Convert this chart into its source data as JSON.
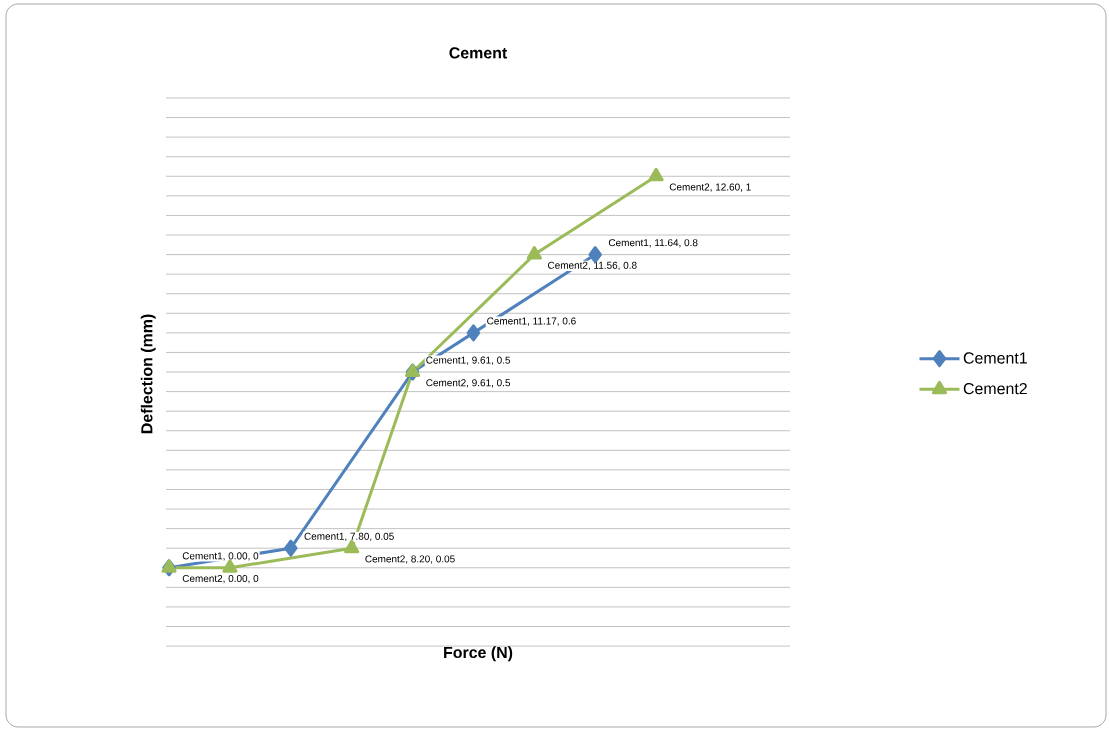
{
  "chart_data": {
    "type": "line",
    "title": "Cement",
    "xlabel": "Force (N)",
    "ylabel": "Deflection (mm)",
    "categories": [
      null,
      null,
      null,
      null,
      null,
      null,
      null,
      null,
      null
    ],
    "grid": "y",
    "legend": "right",
    "line_style": "solid",
    "series": [
      {
        "name": "Cement1",
        "color": "#4f81bd",
        "marker": "diamond",
        "values": [
          0,
          null,
          0.05,
          null,
          0.5,
          0.6,
          null,
          0.8,
          null
        ],
        "value_labels": [
          "Cement1, 0.00, 0",
          null,
          "Cement1, 7.80, 0.05",
          null,
          "Cement1, 9.61, 0.5",
          "Cement1, 11.17, 0.6",
          null,
          "Cement1, 11.64, 0.8",
          null
        ]
      },
      {
        "name": "Cement2",
        "color": "#9bbb59",
        "marker": "triangle",
        "values": [
          0,
          0,
          null,
          0.05,
          0.5,
          null,
          0.8,
          null,
          1
        ],
        "value_labels": [
          "Cement2, 0.00, 0",
          null,
          null,
          "Cement2, 8.20, 0.05",
          "Cement2, 9.61, 0.5",
          null,
          "Cement2, 11.56, 0.8",
          null,
          "Cement2, 12.60, 1"
        ]
      }
    ]
  }
}
